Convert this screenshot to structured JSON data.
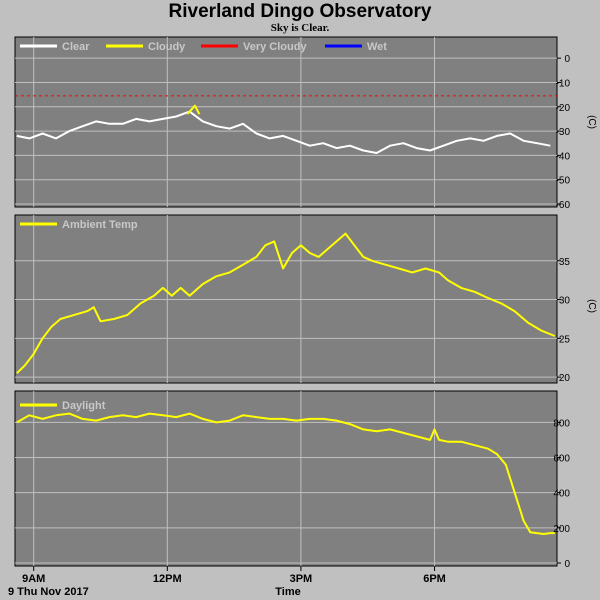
{
  "title": "Riverland Dingo Observatory",
  "subtitle": "Sky is Clear.",
  "date_label": "9 Thu Nov 2017",
  "x_axis_label": "Time",
  "colors": {
    "background": "#c0c0c0",
    "panel": "#808080",
    "grid": "#c0c0c0",
    "clear": "#ffffff",
    "cloudy": "#ffff00",
    "very_cloudy": "#ff0000",
    "wet": "#0000ff"
  },
  "chart_data": [
    {
      "type": "line",
      "xlim": [
        8.58,
        20.75
      ],
      "x_ticks": [
        9,
        12,
        15,
        18
      ],
      "x_tick_labels": [
        "9AM",
        "12PM",
        "3PM",
        "6PM"
      ],
      "ylabel": "(C)",
      "ylim": [
        -60,
        5
      ],
      "y_ticks": [
        0,
        -10,
        -20,
        -30,
        -40,
        -50,
        -60
      ],
      "legend": [
        {
          "name": "Clear",
          "color": "#ffffff"
        },
        {
          "name": "Cloudy",
          "color": "#ffff00"
        },
        {
          "name": "Very Cloudy",
          "color": "#ff0000"
        },
        {
          "name": "Wet",
          "color": "#0000ff"
        }
      ],
      "threshold": {
        "name": "Very Cloudy",
        "y": -15.5,
        "color": "#ff0000"
      },
      "series": [
        {
          "name": "Clear",
          "color": "#ffffff",
          "x": [
            8.62,
            8.9,
            9.2,
            9.5,
            9.8,
            10.1,
            10.4,
            10.7,
            11.0,
            11.3,
            11.6,
            11.9,
            12.2,
            12.5,
            12.8,
            13.1,
            13.4,
            13.7,
            14.0,
            14.3,
            14.6,
            14.9,
            15.2,
            15.5,
            15.8,
            16.1,
            16.4,
            16.7,
            17.0,
            17.3,
            17.6,
            17.9,
            18.2,
            18.5,
            18.8,
            19.1,
            19.4,
            19.7,
            20.0,
            20.3,
            20.6
          ],
          "y": [
            -32,
            -33,
            -31,
            -33,
            -30,
            -28,
            -26,
            -27,
            -27,
            -25,
            -26,
            -25,
            -24,
            -22,
            -26,
            -28,
            -29,
            -27,
            -31,
            -33,
            -32,
            -34,
            -36,
            -35,
            -37,
            -36,
            -38,
            -39,
            -36,
            -35,
            -37,
            -38,
            -36,
            -34,
            -33,
            -34,
            -32,
            -31,
            -34,
            -35,
            -36
          ]
        },
        {
          "name": "Cloudy",
          "color": "#ffff00",
          "x": [
            12.45,
            12.55,
            12.62,
            12.72
          ],
          "y": [
            -23,
            -21,
            -19.5,
            -23
          ]
        }
      ]
    },
    {
      "type": "line",
      "xlim": [
        8.58,
        20.75
      ],
      "ylabel": "(C)",
      "ylim": [
        19.5,
        40
      ],
      "y_ticks": [
        20,
        25,
        30,
        35
      ],
      "legend": [
        {
          "name": "Ambient Temp",
          "color": "#ffff00"
        }
      ],
      "series": [
        {
          "name": "Ambient Temp",
          "color": "#ffff00",
          "x": [
            8.62,
            8.8,
            9.0,
            9.2,
            9.4,
            9.6,
            9.9,
            10.2,
            10.35,
            10.5,
            10.8,
            11.1,
            11.4,
            11.7,
            11.9,
            12.1,
            12.3,
            12.5,
            12.8,
            13.1,
            13.4,
            13.7,
            14.0,
            14.2,
            14.4,
            14.6,
            14.8,
            15.0,
            15.2,
            15.4,
            15.6,
            15.8,
            16.0,
            16.2,
            16.4,
            16.6,
            16.9,
            17.2,
            17.5,
            17.8,
            18.1,
            18.3,
            18.6,
            18.9,
            19.2,
            19.5,
            19.8,
            20.1,
            20.4,
            20.7
          ],
          "y": [
            20.5,
            21.5,
            23,
            25,
            26.5,
            27.5,
            28,
            28.5,
            29,
            27.2,
            27.5,
            28,
            29.5,
            30.5,
            31.5,
            30.5,
            31.5,
            30.5,
            32,
            33,
            33.5,
            34.5,
            35.5,
            37,
            37.5,
            34,
            36,
            37,
            36,
            35.5,
            36.5,
            37.5,
            38.5,
            37,
            35.5,
            35,
            34.5,
            34,
            33.5,
            34,
            33.5,
            32.5,
            31.5,
            31,
            30.2,
            29.5,
            28.5,
            27,
            26,
            25.3
          ]
        }
      ]
    },
    {
      "type": "line",
      "xlim": [
        8.58,
        20.75
      ],
      "ylim": [
        0,
        950
      ],
      "y_ticks": [
        0,
        200,
        400,
        600,
        800
      ],
      "legend": [
        {
          "name": "Daylight",
          "color": "#ffff00"
        }
      ],
      "series": [
        {
          "name": "Daylight",
          "color": "#ffff00",
          "x": [
            8.62,
            8.9,
            9.2,
            9.5,
            9.8,
            10.1,
            10.4,
            10.7,
            11.0,
            11.3,
            11.6,
            11.9,
            12.2,
            12.5,
            12.8,
            13.1,
            13.4,
            13.7,
            14.0,
            14.3,
            14.6,
            14.9,
            15.2,
            15.5,
            15.8,
            16.1,
            16.4,
            16.7,
            17.0,
            17.3,
            17.6,
            17.9,
            18.0,
            18.1,
            18.3,
            18.6,
            18.9,
            19.2,
            19.4,
            19.6,
            19.8,
            20.0,
            20.15,
            20.3,
            20.45,
            20.6,
            20.7
          ],
          "y": [
            800,
            840,
            820,
            840,
            850,
            820,
            810,
            830,
            840,
            830,
            850,
            840,
            830,
            850,
            820,
            800,
            810,
            840,
            830,
            820,
            820,
            810,
            820,
            820,
            810,
            790,
            760,
            750,
            760,
            740,
            720,
            700,
            760,
            700,
            690,
            690,
            670,
            650,
            620,
            560,
            400,
            240,
            175,
            170,
            165,
            170,
            170
          ]
        }
      ]
    }
  ]
}
